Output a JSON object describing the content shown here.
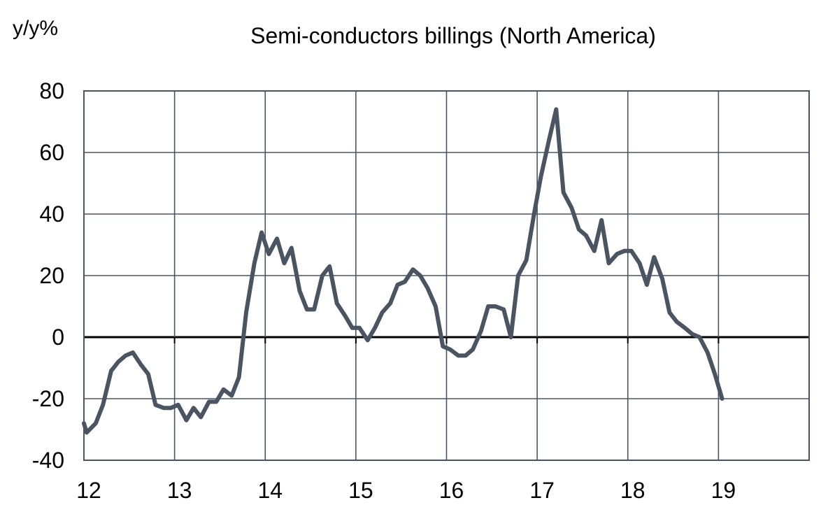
{
  "chart_data": {
    "type": "line",
    "title": "Semi-conductors billings (North America)",
    "ylabel": "y/y%",
    "xlabel": "",
    "x_tick_labels": [
      "12",
      "13",
      "14",
      "15",
      "16",
      "17",
      "18",
      "19"
    ],
    "y_tick_labels": [
      "80",
      "60",
      "40",
      "20",
      "0",
      "-20",
      "-40"
    ],
    "xlim": [
      12,
      20
    ],
    "ylim": [
      -40,
      80
    ],
    "grid": true,
    "line_color": "#4a5561",
    "grid_color": "#4a5561",
    "series": [
      {
        "x": [
          12.0,
          12.03,
          12.13,
          12.21,
          12.3,
          12.38,
          12.46,
          12.54,
          12.63,
          12.71,
          12.79,
          12.88,
          12.96,
          13.04,
          13.13,
          13.21,
          13.29,
          13.38,
          13.46,
          13.54,
          13.63,
          13.71,
          13.79,
          13.88,
          13.96,
          14.04,
          14.13,
          14.21,
          14.29,
          14.38,
          14.46,
          14.54,
          14.63,
          14.71,
          14.79,
          14.88,
          14.96,
          15.04,
          15.13,
          15.21,
          15.29,
          15.38,
          15.46,
          15.54,
          15.63,
          15.71,
          15.79,
          15.88,
          15.96,
          16.04,
          16.13,
          16.21,
          16.29,
          16.38,
          16.46,
          16.54,
          16.63,
          16.71,
          16.79,
          16.88,
          16.96,
          17.04,
          17.13,
          17.21,
          17.29,
          17.38,
          17.46,
          17.54,
          17.63,
          17.71,
          17.79,
          17.88,
          17.96,
          18.04,
          18.13,
          18.21,
          18.29,
          18.38,
          18.46,
          18.54,
          18.63,
          18.71,
          18.79,
          18.88,
          18.96,
          19.04
        ],
        "values": [
          -28,
          -31,
          -28,
          -22,
          -11,
          -8,
          -6,
          -5,
          -9,
          -12,
          -22,
          -23,
          -23,
          -22,
          -27,
          -23,
          -26,
          -21,
          -21,
          -17,
          -19,
          -13,
          8,
          24,
          34,
          27,
          32,
          24,
          29,
          15,
          9,
          9,
          20,
          23,
          11,
          7,
          3,
          3,
          -1,
          3,
          8,
          11,
          17,
          18,
          22,
          20,
          16,
          10,
          -3,
          -4,
          -6,
          -6,
          -4,
          2,
          10,
          10,
          9,
          0,
          20,
          25,
          39,
          52,
          64,
          74,
          47,
          42,
          35,
          33,
          28,
          38,
          24,
          27,
          28,
          28,
          24,
          17,
          26,
          19,
          8,
          5,
          3,
          1,
          0,
          -5,
          -12,
          -20
        ]
      }
    ]
  }
}
